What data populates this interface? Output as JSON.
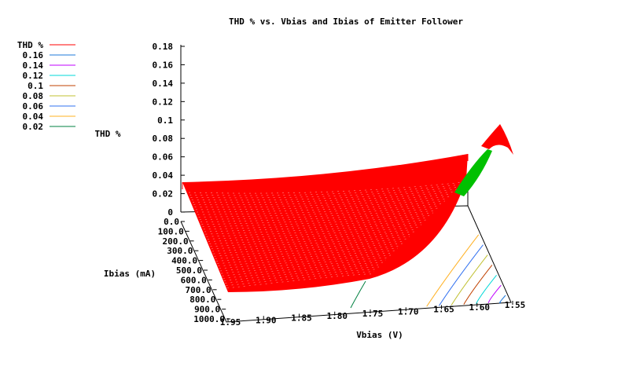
{
  "chart_data": {
    "type": "surface",
    "title": "THD % vs. Vbias and Ibias of Emitter Follower",
    "xlabel": "Vbias (V)",
    "ylabel": "Ibias (mA)",
    "zlabel": "THD %",
    "x_ticks": [
      "1.95",
      "1.90",
      "1.85",
      "1.80",
      "1.75",
      "1.70",
      "1.65",
      "1.60",
      "1.55"
    ],
    "y_ticks": [
      "0.0",
      "100.0",
      "200.0",
      "300.0",
      "400.0",
      "500.0",
      "600.0",
      "700.0",
      "800.0",
      "900.0",
      "1000.0"
    ],
    "z_ticks": [
      "0",
      "0.02",
      "0.04",
      "0.06",
      "0.08",
      "0.1",
      "0.12",
      "0.14",
      "0.16",
      "0.18"
    ],
    "xlim": [
      1.55,
      1.95
    ],
    "ylim": [
      0,
      1000
    ],
    "zlim": [
      0,
      0.18
    ],
    "legend": {
      "placement": "top-left",
      "entries": [
        {
          "label": "THD %",
          "color": "#ff0000"
        },
        {
          "label": "0.16",
          "color": "#1e78d8"
        },
        {
          "label": "0.14",
          "color": "#c000ff"
        },
        {
          "label": "0.12",
          "color": "#00d8d8"
        },
        {
          "label": "0.1",
          "color": "#c04000"
        },
        {
          "label": "0.08",
          "color": "#c0c030"
        },
        {
          "label": "0.06",
          "color": "#3070f0"
        },
        {
          "label": "0.04",
          "color": "#ffb020"
        },
        {
          "label": "0.02",
          "color": "#008040"
        }
      ]
    },
    "surface_color": "#ff0000",
    "highlight_color": "#00c000"
  }
}
